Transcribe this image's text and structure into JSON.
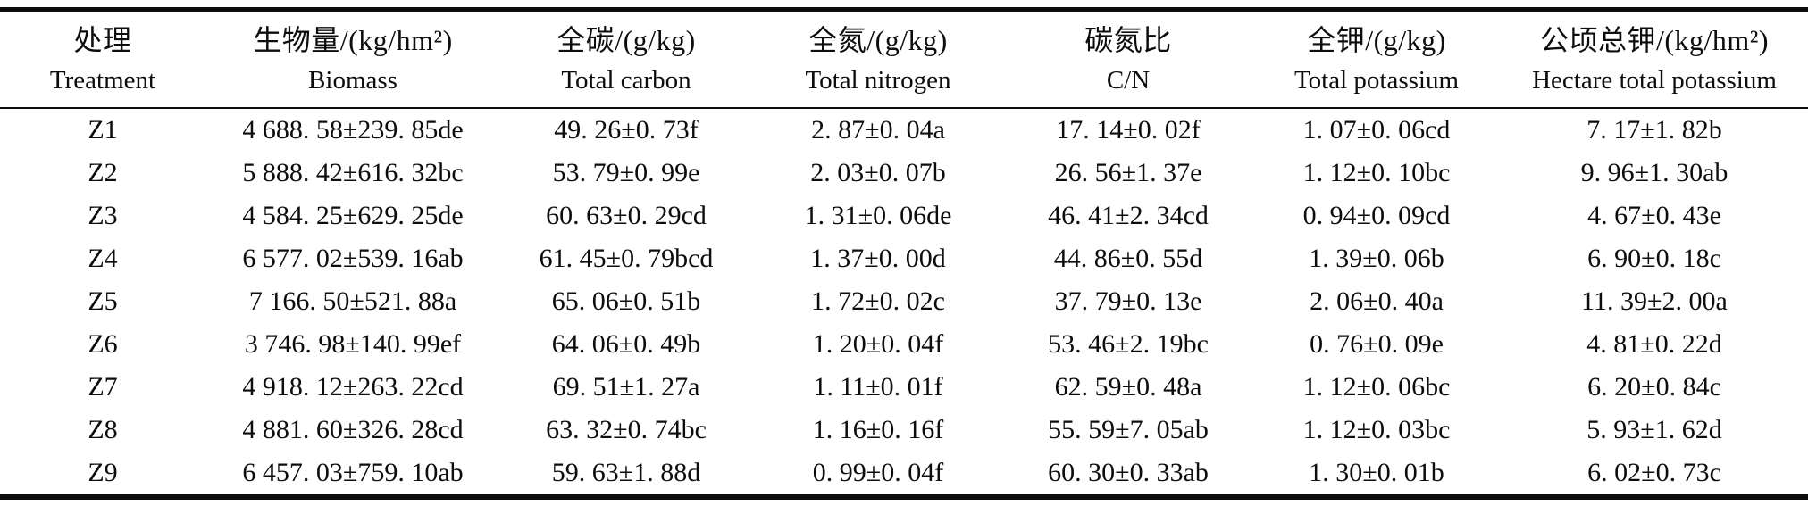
{
  "colors": {
    "text": "#0d0d0d",
    "background": "#ffffff",
    "rule": "#0d0d0d"
  },
  "table": {
    "columns": [
      {
        "zh": "处理",
        "en": "Treatment"
      },
      {
        "zh": "生物量/(kg/hm²)",
        "en": "Biomass"
      },
      {
        "zh": "全碳/(g/kg)",
        "en": "Total carbon"
      },
      {
        "zh": "全氮/(g/kg)",
        "en": "Total nitrogen"
      },
      {
        "zh": "碳氮比",
        "en": "C/N"
      },
      {
        "zh": "全钾/(g/kg)",
        "en": "Total potassium"
      },
      {
        "zh": "公顷总钾/(kg/hm²)",
        "en": "Hectare total potassium"
      }
    ],
    "rows": [
      [
        "Z1",
        "4 688. 58±239. 85de",
        "49. 26±0. 73f",
        "2. 87±0. 04a",
        "17. 14±0. 02f",
        "1. 07±0. 06cd",
        "7. 17±1. 82b"
      ],
      [
        "Z2",
        "5 888. 42±616. 32bc",
        "53. 79±0. 99e",
        "2. 03±0. 07b",
        "26. 56±1. 37e",
        "1. 12±0. 10bc",
        "9. 96±1. 30ab"
      ],
      [
        "Z3",
        "4 584. 25±629. 25de",
        "60. 63±0. 29cd",
        "1. 31±0. 06de",
        "46. 41±2. 34cd",
        "0. 94±0. 09cd",
        "4. 67±0. 43e"
      ],
      [
        "Z4",
        "6 577. 02±539. 16ab",
        "61. 45±0. 79bcd",
        "1. 37±0. 00d",
        "44. 86±0. 55d",
        "1. 39±0. 06b",
        "6. 90±0. 18c"
      ],
      [
        "Z5",
        "7 166. 50±521. 88a",
        "65. 06±0. 51b",
        "1. 72±0. 02c",
        "37. 79±0. 13e",
        "2. 06±0. 40a",
        "11. 39±2. 00a"
      ],
      [
        "Z6",
        "3 746. 98±140. 99ef",
        "64. 06±0. 49b",
        "1. 20±0. 04f",
        "53. 46±2. 19bc",
        "0. 76±0. 09e",
        "4. 81±0. 22d"
      ],
      [
        "Z7",
        "4 918. 12±263. 22cd",
        "69. 51±1. 27a",
        "1. 11±0. 01f",
        "62. 59±0. 48a",
        "1. 12±0. 06bc",
        "6. 20±0. 84c"
      ],
      [
        "Z8",
        "4 881. 60±326. 28cd",
        "63. 32±0. 74bc",
        "1. 16±0. 16f",
        "55. 59±7. 05ab",
        "1. 12±0. 03bc",
        "5. 93±1. 62d"
      ],
      [
        "Z9",
        "6 457. 03±759. 10ab",
        "59. 63±1. 88d",
        "0. 99±0. 04f",
        "60. 30±0. 33ab",
        "1. 30±0. 01b",
        "6. 02±0. 73c"
      ]
    ]
  }
}
